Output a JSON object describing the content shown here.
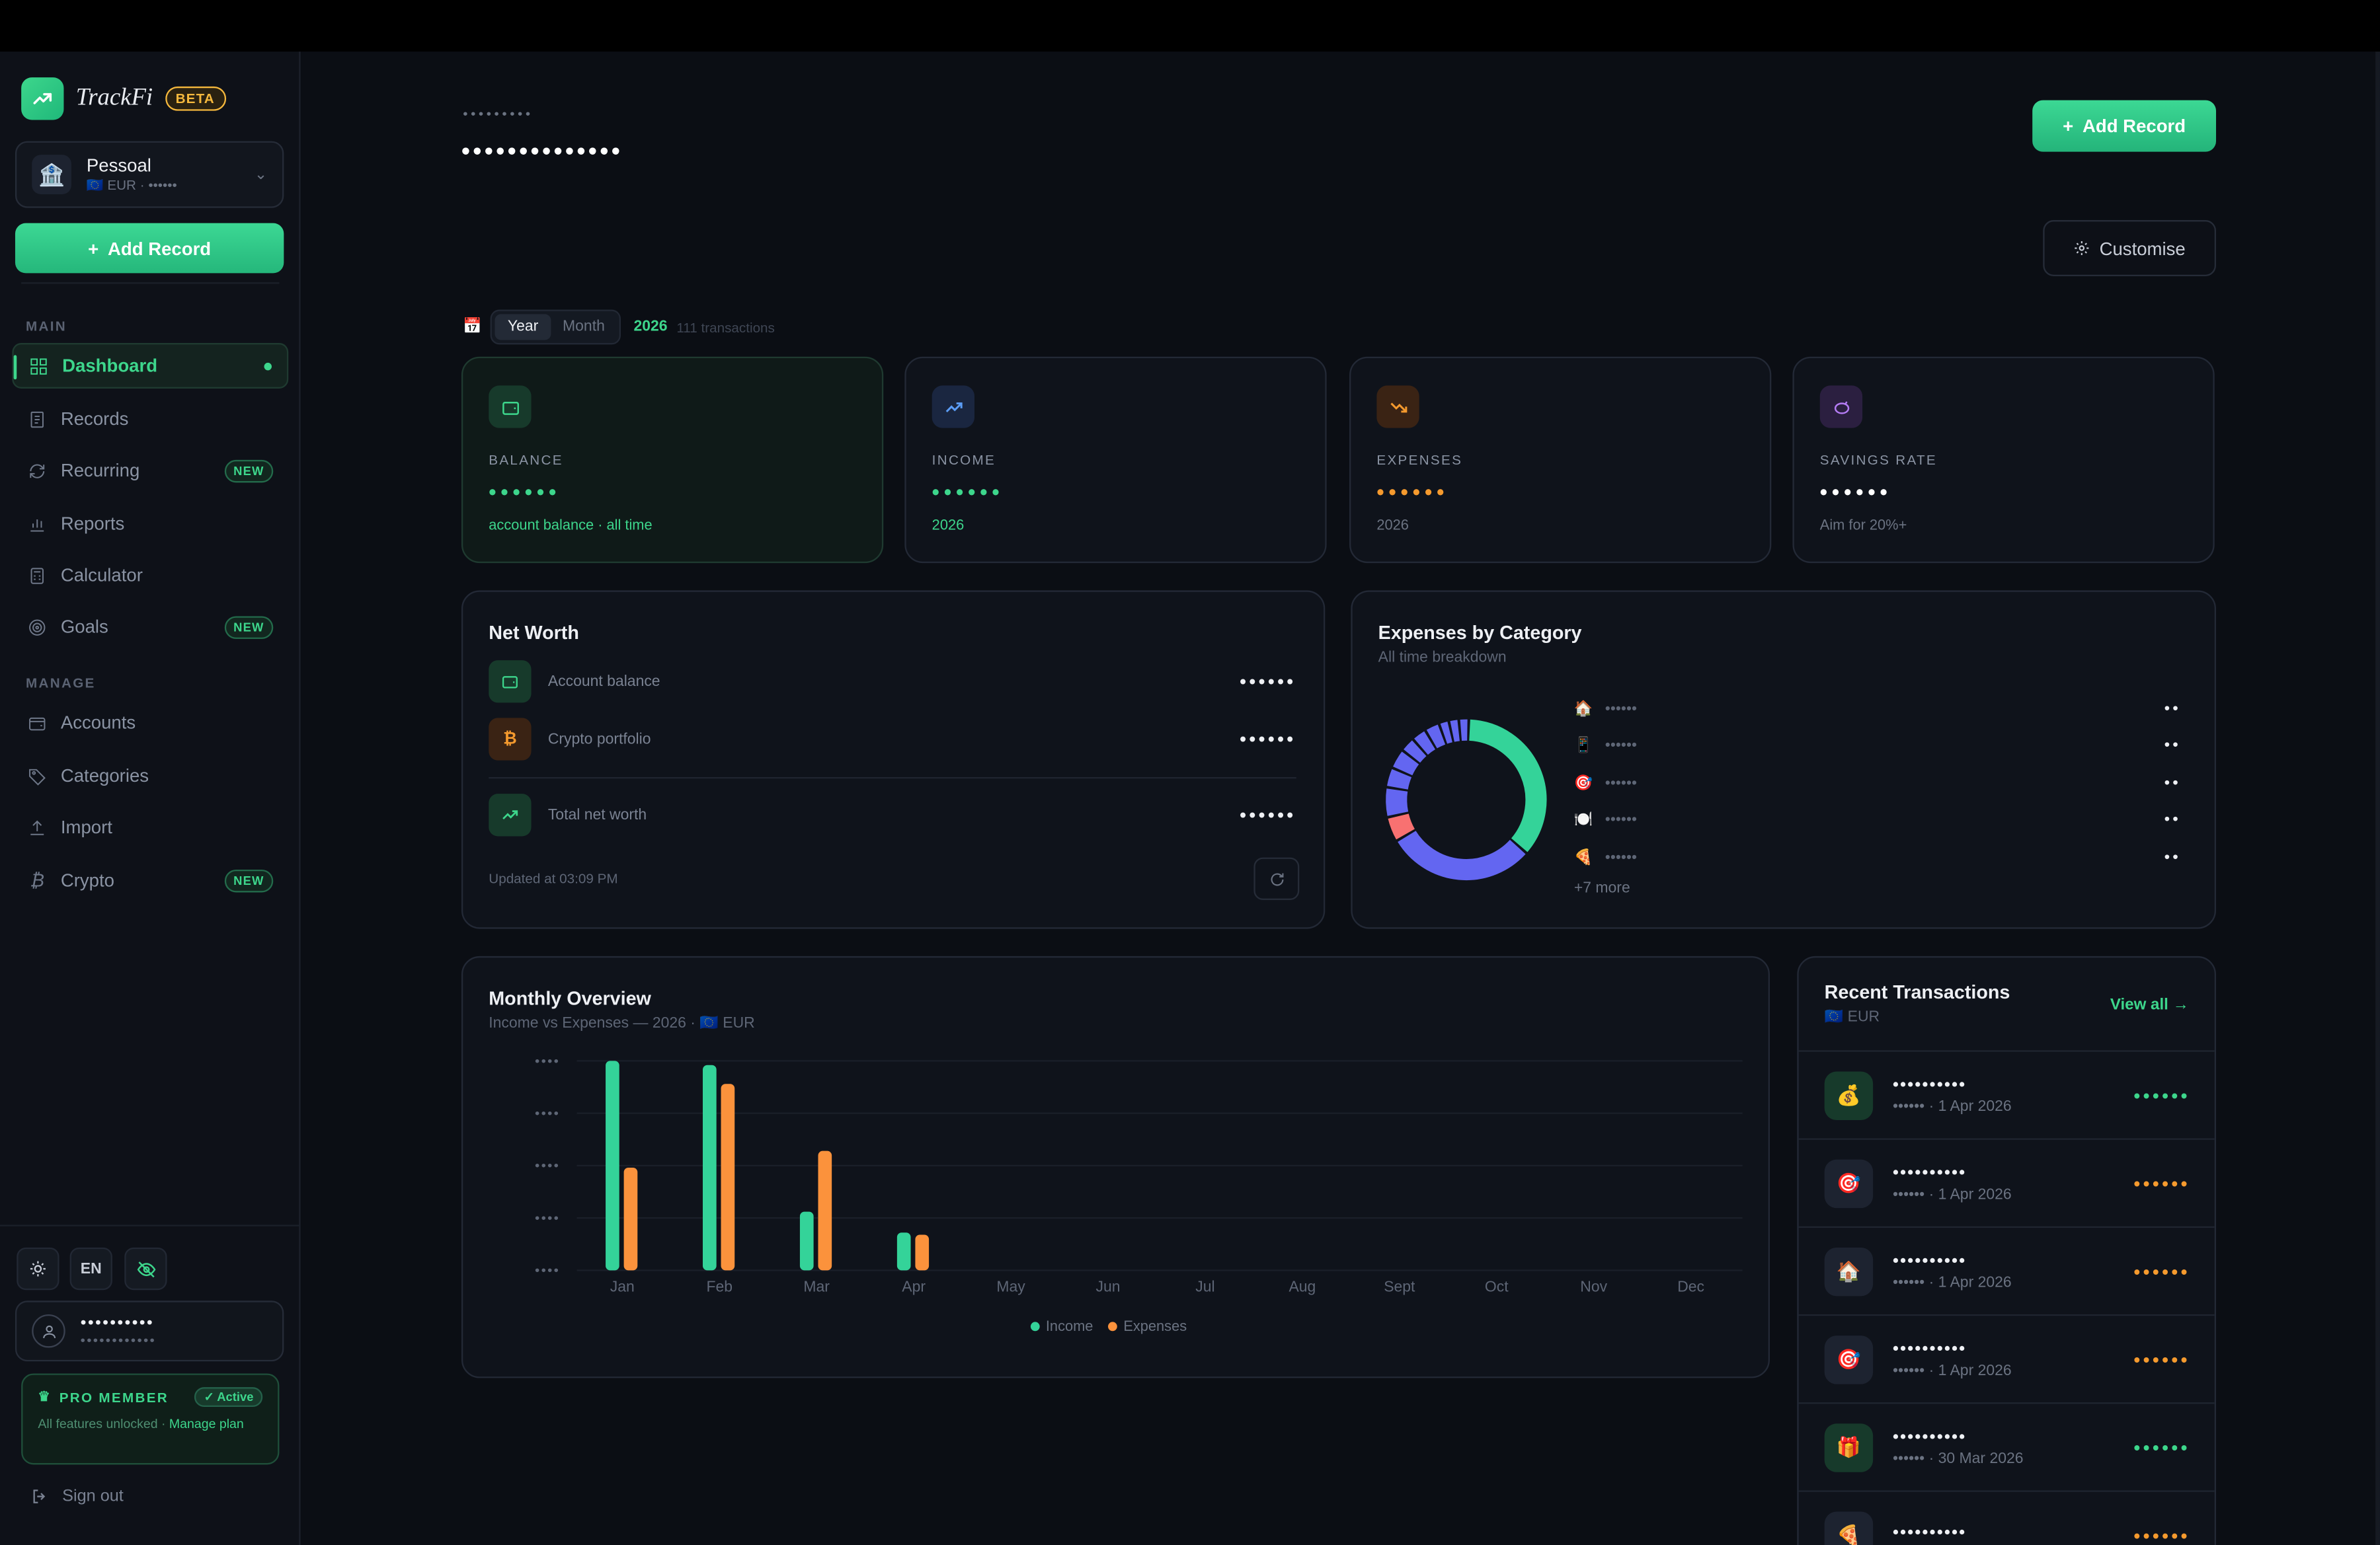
{
  "sidebar": {
    "brand": "TrackFi",
    "beta": "BETA",
    "workspace": {
      "name": "Pessoal",
      "sub": "🇪🇺 EUR · ••••••"
    },
    "add_record": "Add Record",
    "section_main": "MAIN",
    "section_manage": "MANAGE",
    "main_items": [
      {
        "label": "Dashboard",
        "icon": "grid-icon",
        "active": true
      },
      {
        "label": "Records",
        "icon": "receipt-icon"
      },
      {
        "label": "Recurring",
        "icon": "repeat-icon",
        "badge": "NEW"
      },
      {
        "label": "Reports",
        "icon": "bar-chart-icon"
      },
      {
        "label": "Calculator",
        "icon": "calculator-icon"
      },
      {
        "label": "Goals",
        "icon": "target-icon",
        "badge": "NEW"
      }
    ],
    "manage_items": [
      {
        "label": "Accounts",
        "icon": "wallet-icon"
      },
      {
        "label": "Categories",
        "icon": "tag-icon"
      },
      {
        "label": "Import",
        "icon": "upload-icon"
      },
      {
        "label": "Crypto",
        "icon": "bitcoin-icon",
        "badge": "NEW"
      }
    ],
    "lang": "EN",
    "user": {
      "name": "••••••••••",
      "email": "••••••••••••"
    },
    "pro": {
      "title": "PRO MEMBER",
      "status": "✓ Active",
      "desc": "All features unlocked · ",
      "manage": "Manage plan"
    },
    "signout": "Sign out"
  },
  "header": {
    "crumb": "•••••••••",
    "title": "••••••••••••••",
    "add_record": "Add Record",
    "customise": "Customise"
  },
  "filter": {
    "year": "Year",
    "month": "Month",
    "value": "2026",
    "count": "111 transactions"
  },
  "stats": [
    {
      "label": "BALANCE",
      "value": "••••••",
      "sub": "account balance · all time",
      "color": "#3dd68c"
    },
    {
      "label": "INCOME",
      "value": "••••••",
      "sub": "2026",
      "color": "#3dd68c"
    },
    {
      "label": "EXPENSES",
      "value": "••••••",
      "sub": "2026",
      "color": "#f59a2e"
    },
    {
      "label": "SAVINGS RATE",
      "value": "••••••",
      "sub": "Aim for 20%+",
      "color": "#ffffff"
    }
  ],
  "net_worth": {
    "title": "Net Worth",
    "rows": [
      {
        "label": "Account balance",
        "value": "••••••"
      },
      {
        "label": "Crypto portfolio",
        "value": "••••••"
      }
    ],
    "total_label": "Total net worth",
    "total_value": "••••••",
    "updated": "Updated at 03:09 PM"
  },
  "expenses_by_category": {
    "title": "Expenses by Category",
    "subtitle": "All time breakdown",
    "rows": [
      {
        "icon": "🏠",
        "name": "••••••",
        "value": "••"
      },
      {
        "icon": "📱",
        "name": "••••••",
        "value": "••"
      },
      {
        "icon": "🎯",
        "name": "••••••",
        "value": "••"
      },
      {
        "icon": "🍽️",
        "name": "••••••",
        "value": "••"
      },
      {
        "icon": "🍕",
        "name": "••••••",
        "value": "••"
      }
    ],
    "more": "+7 more",
    "donut": [
      {
        "share": 0.36,
        "color": "#34d399"
      },
      {
        "share": 0.3,
        "color": "#6366f1"
      },
      {
        "share": 0.05,
        "color": "#f87171"
      },
      {
        "share": 0.06,
        "color": "#6366f1"
      },
      {
        "share": 0.04,
        "color": "#6366f1"
      },
      {
        "share": 0.04,
        "color": "#6366f1"
      },
      {
        "share": 0.03,
        "color": "#6366f1"
      },
      {
        "share": 0.03,
        "color": "#6366f1"
      },
      {
        "share": 0.03,
        "color": "#6366f1"
      },
      {
        "share": 0.02,
        "color": "#6366f1"
      },
      {
        "share": 0.02,
        "color": "#6366f1"
      },
      {
        "share": 0.02,
        "color": "#6366f1"
      }
    ]
  },
  "monthly_overview": {
    "title": "Monthly Overview",
    "subtitle": "Income vs Expenses — 2026 · 🇪🇺 EUR",
    "y_ticks": [
      "••••",
      "••••",
      "••••",
      "••••",
      "••••"
    ],
    "legend_income": "Income",
    "legend_expenses": "Expenses",
    "income_color": "#34d399",
    "expenses_color": "#fb923c"
  },
  "chart_data": {
    "type": "bar",
    "categories": [
      "Jan",
      "Feb",
      "Mar",
      "Apr",
      "May",
      "Jun",
      "Jul",
      "Aug",
      "Sept",
      "Oct",
      "Nov",
      "Dec"
    ],
    "series": [
      {
        "name": "Income",
        "values": [
          100,
          98,
          28,
          18,
          0,
          0,
          0,
          0,
          0,
          0,
          0,
          0
        ]
      },
      {
        "name": "Expenses",
        "values": [
          49,
          89,
          57,
          17,
          0,
          0,
          0,
          0,
          0,
          0,
          0,
          0
        ]
      }
    ],
    "title": "Monthly Overview",
    "ylim": [
      0,
      100
    ],
    "grid": true,
    "legend": "bottom"
  },
  "recent": {
    "title": "Recent Transactions",
    "currency": "🇪🇺 EUR",
    "view_all": "View all",
    "items": [
      {
        "icon": "💰",
        "name": "••••••••••",
        "date": "•••••• · 1 Apr 2026",
        "amount": "••••••",
        "type": "income"
      },
      {
        "icon": "🎯",
        "name": "••••••••••",
        "date": "•••••• · 1 Apr 2026",
        "amount": "••••••",
        "type": "expense"
      },
      {
        "icon": "🏠",
        "name": "••••••••••",
        "date": "•••••• · 1 Apr 2026",
        "amount": "••••••",
        "type": "expense"
      },
      {
        "icon": "🎯",
        "name": "••••••••••",
        "date": "•••••• · 1 Apr 2026",
        "amount": "••••••",
        "type": "expense"
      },
      {
        "icon": "🎁",
        "name": "••••••••••",
        "date": "•••••• · 30 Mar 2026",
        "amount": "••••••",
        "type": "income"
      },
      {
        "icon": "🍕",
        "name": "••••••••••",
        "date": "",
        "amount": "••••••",
        "type": "expense"
      }
    ]
  }
}
